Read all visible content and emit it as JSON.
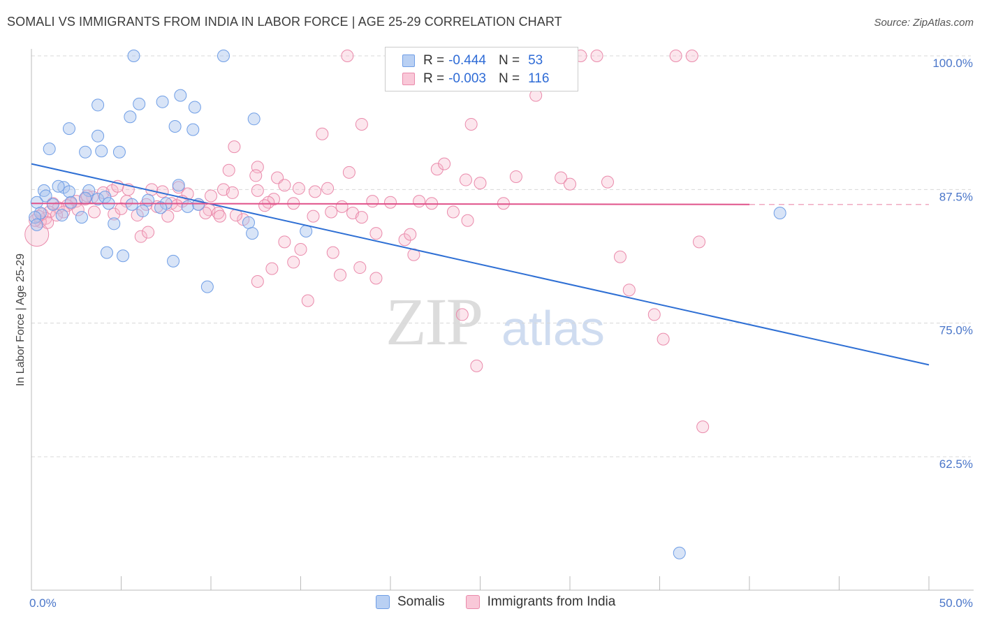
{
  "title": "SOMALI VS IMMIGRANTS FROM INDIA IN LABOR FORCE | AGE 25-29 CORRELATION CHART",
  "source": "Source: ZipAtlas.com",
  "watermark": {
    "zip": "ZIP",
    "atlas": "atlas"
  },
  "legend": {
    "rows": [
      {
        "r_label": "R =",
        "r_value": "-0.444",
        "n_label": "N =",
        "n_value": "53",
        "color": "#a8c4ee"
      },
      {
        "r_label": "R =",
        "r_value": "-0.003",
        "n_label": "N =",
        "n_value": "116",
        "color": "#f6b8cc"
      }
    ]
  },
  "bottom_legend": [
    {
      "label": "Somalis",
      "color": "#a8c4ee"
    },
    {
      "label": "Immigrants from India",
      "color": "#f6b8cc"
    }
  ],
  "chart_data": {
    "type": "scatter",
    "xlabel": "",
    "ylabel": "In Labor Force | Age 25-29",
    "xlim": [
      0,
      50
    ],
    "ylim": [
      51.5,
      101.5
    ],
    "x_tick_labels": [
      "0.0%",
      "50.0%"
    ],
    "y_ticks": [
      62.5,
      75.0,
      87.5,
      100.0
    ],
    "y_tick_labels": [
      "62.5%",
      "75.0%",
      "87.5%",
      "100.0%"
    ],
    "grid": "dashed horizontal",
    "colors": {
      "somalis": "#6f9ee6",
      "india": "#ea8aab",
      "somalis_line": "#2e6fd4",
      "india_line": "#e0528a"
    },
    "series": [
      {
        "name": "Somalis",
        "trend": {
          "x": [
            0,
            50
          ],
          "y": [
            89.9,
            71.1
          ]
        },
        "points": [
          [
            5.7,
            100.0
          ],
          [
            10.7,
            100.0
          ],
          [
            8.3,
            96.3
          ],
          [
            3.7,
            95.4
          ],
          [
            6.0,
            95.5
          ],
          [
            7.3,
            95.7
          ],
          [
            9.1,
            95.2
          ],
          [
            5.5,
            94.3
          ],
          [
            12.4,
            94.1
          ],
          [
            2.1,
            93.2
          ],
          [
            8.0,
            93.4
          ],
          [
            9.0,
            93.1
          ],
          [
            3.7,
            92.5
          ],
          [
            1.0,
            91.3
          ],
          [
            3.0,
            91.0
          ],
          [
            3.9,
            91.1
          ],
          [
            4.9,
            91.0
          ],
          [
            1.8,
            87.7
          ],
          [
            0.7,
            87.4
          ],
          [
            1.5,
            87.8
          ],
          [
            3.2,
            87.4
          ],
          [
            2.1,
            87.3
          ],
          [
            0.8,
            86.9
          ],
          [
            1.2,
            86.1
          ],
          [
            2.2,
            86.3
          ],
          [
            3.0,
            86.7
          ],
          [
            3.7,
            86.6
          ],
          [
            4.1,
            86.8
          ],
          [
            4.3,
            86.2
          ],
          [
            5.6,
            86.1
          ],
          [
            0.3,
            86.3
          ],
          [
            0.5,
            85.3
          ],
          [
            1.7,
            85.1
          ],
          [
            2.8,
            84.9
          ],
          [
            4.6,
            84.3
          ],
          [
            6.5,
            86.5
          ],
          [
            7.5,
            86.2
          ],
          [
            8.2,
            87.9
          ],
          [
            9.3,
            86.1
          ],
          [
            7.2,
            85.8
          ],
          [
            8.7,
            85.9
          ],
          [
            12.1,
            84.4
          ],
          [
            15.3,
            83.6
          ],
          [
            12.3,
            83.4
          ],
          [
            4.2,
            81.6
          ],
          [
            5.1,
            81.3
          ],
          [
            7.9,
            80.8
          ],
          [
            9.8,
            78.4
          ],
          [
            41.7,
            85.3
          ],
          [
            36.1,
            53.5
          ],
          [
            0.2,
            84.9
          ],
          [
            0.3,
            84.2
          ],
          [
            6.2,
            85.5
          ]
        ]
      },
      {
        "name": "Immigrants from India",
        "trend": {
          "x": [
            0,
            40
          ],
          "y": [
            86.2,
            86.1
          ]
        },
        "trend_dash": {
          "x": [
            40,
            50
          ],
          "y": [
            86.1,
            86.1
          ]
        },
        "points": [
          [
            17.6,
            100.0
          ],
          [
            30.6,
            100.0
          ],
          [
            31.5,
            100.0
          ],
          [
            35.9,
            100.0
          ],
          [
            36.8,
            100.0
          ],
          [
            28.1,
            96.3
          ],
          [
            18.4,
            93.6
          ],
          [
            24.5,
            93.6
          ],
          [
            16.2,
            92.7
          ],
          [
            11.3,
            91.5
          ],
          [
            12.6,
            89.6
          ],
          [
            11.0,
            89.3
          ],
          [
            22.6,
            89.4
          ],
          [
            23.0,
            89.9
          ],
          [
            17.7,
            89.1
          ],
          [
            12.5,
            88.8
          ],
          [
            13.7,
            88.6
          ],
          [
            27.0,
            88.7
          ],
          [
            29.5,
            88.6
          ],
          [
            24.2,
            88.4
          ],
          [
            25.0,
            88.1
          ],
          [
            30.0,
            88.0
          ],
          [
            32.1,
            88.2
          ],
          [
            14.1,
            87.9
          ],
          [
            14.9,
            87.6
          ],
          [
            15.8,
            87.3
          ],
          [
            16.5,
            87.6
          ],
          [
            12.6,
            87.4
          ],
          [
            13.5,
            86.6
          ],
          [
            10.7,
            87.5
          ],
          [
            11.2,
            87.2
          ],
          [
            10.0,
            86.9
          ],
          [
            8.7,
            87.1
          ],
          [
            8.2,
            87.7
          ],
          [
            7.3,
            87.3
          ],
          [
            6.7,
            87.5
          ],
          [
            5.4,
            87.5
          ],
          [
            4.5,
            87.4
          ],
          [
            4.0,
            87.2
          ],
          [
            3.4,
            86.8
          ],
          [
            3.0,
            86.6
          ],
          [
            2.5,
            86.4
          ],
          [
            2.2,
            86.2
          ],
          [
            2.0,
            86.0
          ],
          [
            1.5,
            85.8
          ],
          [
            1.2,
            86.2
          ],
          [
            1.0,
            85.4
          ],
          [
            0.8,
            84.8
          ],
          [
            0.5,
            84.5
          ],
          [
            0.3,
            83.3
          ],
          [
            0.2,
            84.6
          ],
          [
            0.6,
            85.2
          ],
          [
            1.8,
            85.4
          ],
          [
            3.5,
            85.4
          ],
          [
            4.6,
            85.2
          ],
          [
            5.3,
            86.4
          ],
          [
            5.9,
            85.1
          ],
          [
            6.4,
            86.1
          ],
          [
            7.0,
            85.9
          ],
          [
            7.8,
            86.2
          ],
          [
            8.4,
            86.4
          ],
          [
            9.3,
            86.1
          ],
          [
            9.9,
            85.6
          ],
          [
            10.4,
            85.3
          ],
          [
            11.8,
            84.7
          ],
          [
            13.2,
            86.3
          ],
          [
            14.6,
            86.2
          ],
          [
            15.7,
            85.0
          ],
          [
            16.7,
            85.4
          ],
          [
            17.9,
            85.3
          ],
          [
            19.0,
            86.4
          ],
          [
            20.0,
            86.3
          ],
          [
            21.6,
            86.4
          ],
          [
            22.3,
            86.2
          ],
          [
            23.5,
            85.4
          ],
          [
            26.3,
            86.2
          ],
          [
            17.3,
            85.9
          ],
          [
            6.1,
            83.1
          ],
          [
            6.5,
            83.5
          ],
          [
            14.1,
            82.6
          ],
          [
            15.0,
            81.9
          ],
          [
            19.2,
            83.4
          ],
          [
            20.8,
            82.8
          ],
          [
            21.1,
            83.3
          ],
          [
            24.3,
            84.6
          ],
          [
            16.8,
            81.6
          ],
          [
            14.6,
            80.7
          ],
          [
            13.4,
            80.1
          ],
          [
            17.2,
            79.5
          ],
          [
            18.3,
            80.2
          ],
          [
            12.6,
            78.9
          ],
          [
            19.2,
            79.2
          ],
          [
            15.4,
            77.1
          ],
          [
            21.3,
            81.4
          ],
          [
            24.0,
            75.8
          ],
          [
            34.7,
            75.8
          ],
          [
            33.3,
            78.1
          ],
          [
            35.2,
            73.5
          ],
          [
            32.8,
            81.2
          ],
          [
            37.2,
            82.6
          ],
          [
            24.8,
            71.0
          ],
          [
            37.4,
            65.3
          ],
          [
            11.4,
            85.1
          ],
          [
            9.7,
            85.3
          ],
          [
            5.0,
            85.7
          ],
          [
            8.1,
            86.0
          ],
          [
            7.6,
            85.0
          ],
          [
            3.1,
            86.9
          ],
          [
            10.5,
            85.0
          ],
          [
            2.6,
            85.6
          ],
          [
            4.8,
            87.8
          ],
          [
            18.4,
            84.9
          ],
          [
            13.0,
            86.0
          ],
          [
            0.4,
            85.0
          ],
          [
            0.9,
            84.4
          ],
          [
            1.4,
            85.1
          ]
        ]
      }
    ]
  }
}
